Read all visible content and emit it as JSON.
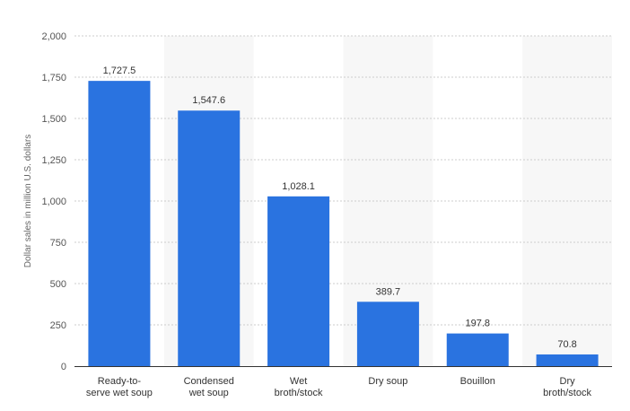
{
  "chart_data": {
    "type": "bar",
    "title": "",
    "xlabel": "",
    "ylabel": "Dollar sales in million U.S. dollars",
    "ylim": [
      0,
      2000
    ],
    "yticks": [
      0,
      250,
      500,
      750,
      1000,
      1250,
      1500,
      1750,
      2000
    ],
    "ytick_labels": [
      "0",
      "250",
      "500",
      "750",
      "1,000",
      "1,250",
      "1,500",
      "1,750",
      "2,000"
    ],
    "grid": true,
    "bar_color": "#2a73e0",
    "band_color": "#f7f7f7",
    "categories": [
      [
        "Ready-to-",
        "serve wet soup"
      ],
      [
        "Condensed",
        "wet soup"
      ],
      [
        "Wet",
        "broth/stock"
      ],
      [
        "Dry soup"
      ],
      [
        "Bouillon"
      ],
      [
        "Dry",
        "broth/stock"
      ]
    ],
    "values": [
      1727.5,
      1547.6,
      1028.1,
      389.7,
      197.8,
      70.8
    ],
    "value_labels": [
      "1,727.5",
      "1,547.6",
      "1,028.1",
      "389.7",
      "197.8",
      "70.8"
    ]
  }
}
